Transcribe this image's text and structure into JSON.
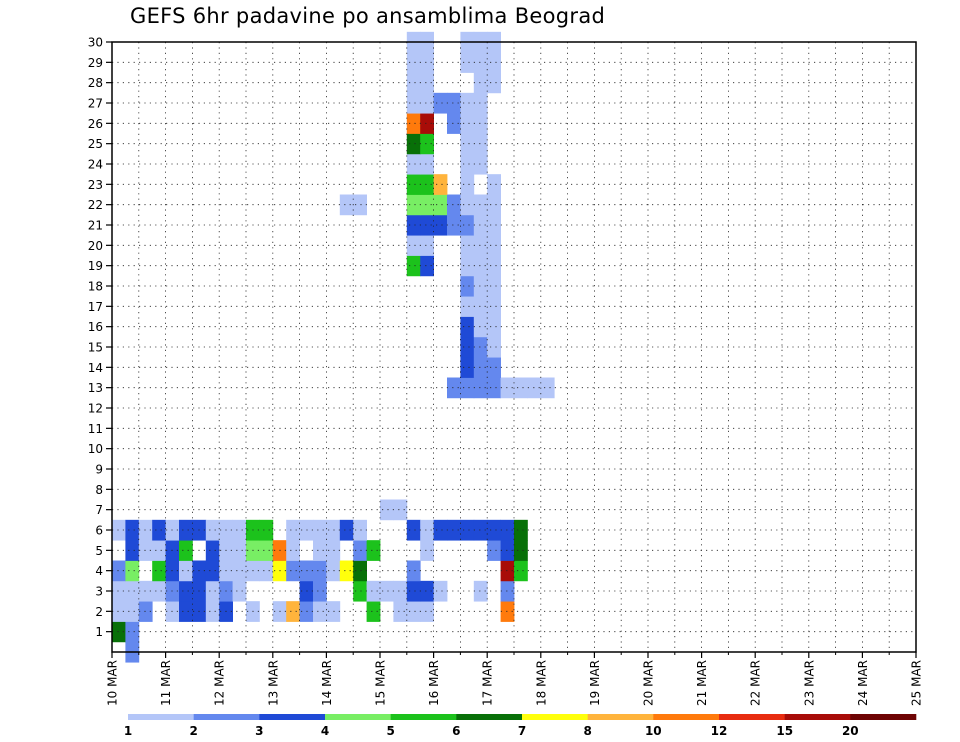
{
  "chart_data": {
    "type": "heatmap",
    "title": "GEFS 6hr padavine po ansamblima Beograd",
    "x_tick_labels": [
      "10 MAR",
      "11 MAR",
      "12 MAR",
      "13 MAR",
      "14 MAR",
      "15 MAR",
      "16 MAR",
      "17 MAR",
      "18 MAR",
      "19 MAR",
      "20 MAR",
      "21 MAR",
      "22 MAR",
      "23 MAR",
      "24 MAR",
      "25 MAR"
    ],
    "y_tick_labels": [
      "1",
      "2",
      "3",
      "4",
      "5",
      "6",
      "7",
      "8",
      "9",
      "10",
      "11",
      "12",
      "13",
      "14",
      "15",
      "16",
      "17",
      "18",
      "19",
      "20",
      "21",
      "22",
      "23",
      "24",
      "25",
      "26",
      "27",
      "28",
      "29",
      "30"
    ],
    "x_steps_6h": 60,
    "y_members": [
      0,
      30
    ],
    "grid": "dotted",
    "legend": {
      "position": "bottom",
      "labels": [
        "1",
        "2",
        "3",
        "4",
        "5",
        "6",
        "7",
        "8",
        "10",
        "12",
        "15",
        "20"
      ],
      "colors": [
        "#b4c6f8",
        "#6488ee",
        "#1f4ad6",
        "#78ee64",
        "#1cc21c",
        "#087008",
        "#ffff0c",
        "#ffb43c",
        "#ff7a0c",
        "#e82c10",
        "#a80c08",
        "#6e0404"
      ]
    },
    "cells": [
      [
        0,
        1,
        1
      ],
      [
        1,
        0,
        5
      ],
      [
        1,
        1,
        1
      ],
      [
        2,
        0,
        0
      ],
      [
        2,
        1,
        0
      ],
      [
        2,
        2,
        1
      ],
      [
        2,
        4,
        0
      ],
      [
        2,
        5,
        2
      ],
      [
        2,
        6,
        2
      ],
      [
        2,
        7,
        0
      ],
      [
        2,
        8,
        2
      ],
      [
        2,
        10,
        0
      ],
      [
        2,
        12,
        0
      ],
      [
        2,
        13,
        7
      ],
      [
        2,
        14,
        1
      ],
      [
        2,
        15,
        0
      ],
      [
        2,
        16,
        0
      ],
      [
        2,
        19,
        4
      ],
      [
        2,
        21,
        0
      ],
      [
        2,
        22,
        0
      ],
      [
        2,
        23,
        0
      ],
      [
        2,
        29,
        8
      ],
      [
        3,
        0,
        0
      ],
      [
        3,
        1,
        0
      ],
      [
        3,
        2,
        0
      ],
      [
        3,
        3,
        0
      ],
      [
        3,
        4,
        1
      ],
      [
        3,
        5,
        2
      ],
      [
        3,
        6,
        2
      ],
      [
        3,
        7,
        0
      ],
      [
        3,
        8,
        1
      ],
      [
        3,
        9,
        0
      ],
      [
        3,
        14,
        2
      ],
      [
        3,
        15,
        1
      ],
      [
        3,
        18,
        4
      ],
      [
        3,
        19,
        0
      ],
      [
        3,
        20,
        0
      ],
      [
        3,
        21,
        0
      ],
      [
        3,
        22,
        2
      ],
      [
        3,
        23,
        2
      ],
      [
        3,
        24,
        0
      ],
      [
        3,
        27,
        0
      ],
      [
        3,
        29,
        1
      ],
      [
        4,
        0,
        1
      ],
      [
        4,
        1,
        3
      ],
      [
        4,
        3,
        4
      ],
      [
        4,
        4,
        2
      ],
      [
        4,
        5,
        0
      ],
      [
        4,
        6,
        2
      ],
      [
        4,
        7,
        2
      ],
      [
        4,
        8,
        0
      ],
      [
        4,
        9,
        0
      ],
      [
        4,
        10,
        0
      ],
      [
        4,
        11,
        0
      ],
      [
        4,
        12,
        6
      ],
      [
        4,
        13,
        1
      ],
      [
        4,
        14,
        1
      ],
      [
        4,
        15,
        1
      ],
      [
        4,
        16,
        0
      ],
      [
        4,
        17,
        6
      ],
      [
        4,
        18,
        5
      ],
      [
        4,
        22,
        1
      ],
      [
        4,
        29,
        10
      ],
      [
        4,
        30,
        4
      ],
      [
        5,
        1,
        2
      ],
      [
        5,
        2,
        0
      ],
      [
        5,
        3,
        0
      ],
      [
        5,
        4,
        2
      ],
      [
        5,
        5,
        4
      ],
      [
        5,
        7,
        2
      ],
      [
        5,
        8,
        0
      ],
      [
        5,
        9,
        0
      ],
      [
        5,
        10,
        3
      ],
      [
        5,
        11,
        3
      ],
      [
        5,
        12,
        8
      ],
      [
        5,
        13,
        0
      ],
      [
        5,
        15,
        0
      ],
      [
        5,
        16,
        0
      ],
      [
        5,
        18,
        1
      ],
      [
        5,
        19,
        4
      ],
      [
        5,
        23,
        0
      ],
      [
        5,
        28,
        1
      ],
      [
        5,
        29,
        2
      ],
      [
        5,
        30,
        5
      ],
      [
        6,
        0,
        0
      ],
      [
        6,
        1,
        2
      ],
      [
        6,
        2,
        0
      ],
      [
        6,
        3,
        2
      ],
      [
        6,
        4,
        0
      ],
      [
        6,
        5,
        2
      ],
      [
        6,
        6,
        2
      ],
      [
        6,
        7,
        0
      ],
      [
        6,
        8,
        0
      ],
      [
        6,
        9,
        0
      ],
      [
        6,
        10,
        4
      ],
      [
        6,
        11,
        4
      ],
      [
        6,
        13,
        0
      ],
      [
        6,
        14,
        0
      ],
      [
        6,
        15,
        0
      ],
      [
        6,
        16,
        0
      ],
      [
        6,
        17,
        2
      ],
      [
        6,
        18,
        0
      ],
      [
        6,
        22,
        2
      ],
      [
        6,
        23,
        0
      ],
      [
        6,
        24,
        2
      ],
      [
        6,
        25,
        2
      ],
      [
        6,
        26,
        2
      ],
      [
        6,
        27,
        2
      ],
      [
        6,
        28,
        2
      ],
      [
        6,
        29,
        2
      ],
      [
        6,
        30,
        5
      ],
      [
        7,
        20,
        0
      ],
      [
        7,
        21,
        0
      ],
      [
        13,
        25,
        1
      ],
      [
        13,
        26,
        1
      ],
      [
        13,
        27,
        1
      ],
      [
        13,
        28,
        1
      ],
      [
        13,
        29,
        0
      ],
      [
        13,
        30,
        0
      ],
      [
        13,
        31,
        0
      ],
      [
        13,
        32,
        0
      ],
      [
        14,
        26,
        2
      ],
      [
        14,
        27,
        1
      ],
      [
        14,
        28,
        1
      ],
      [
        15,
        26,
        2
      ],
      [
        15,
        27,
        1
      ],
      [
        15,
        28,
        0
      ],
      [
        16,
        26,
        2
      ],
      [
        16,
        27,
        0
      ],
      [
        16,
        28,
        0
      ],
      [
        17,
        26,
        0
      ],
      [
        17,
        27,
        0
      ],
      [
        17,
        28,
        0
      ],
      [
        18,
        26,
        1
      ],
      [
        18,
        27,
        0
      ],
      [
        18,
        28,
        0
      ],
      [
        19,
        22,
        4
      ],
      [
        19,
        23,
        2
      ],
      [
        19,
        26,
        0
      ],
      [
        19,
        27,
        0
      ],
      [
        19,
        28,
        0
      ],
      [
        20,
        22,
        0
      ],
      [
        20,
        23,
        0
      ],
      [
        20,
        26,
        0
      ],
      [
        20,
        27,
        0
      ],
      [
        20,
        28,
        0
      ],
      [
        21,
        22,
        2
      ],
      [
        21,
        23,
        2
      ],
      [
        21,
        24,
        2
      ],
      [
        21,
        25,
        1
      ],
      [
        21,
        26,
        1
      ],
      [
        21,
        27,
        0
      ],
      [
        21,
        28,
        0
      ],
      [
        22,
        17,
        0
      ],
      [
        22,
        18,
        0
      ],
      [
        22,
        22,
        3
      ],
      [
        22,
        23,
        3
      ],
      [
        22,
        24,
        3
      ],
      [
        22,
        25,
        1
      ],
      [
        22,
        26,
        0
      ],
      [
        22,
        27,
        0
      ],
      [
        22,
        28,
        0
      ],
      [
        23,
        22,
        4
      ],
      [
        23,
        23,
        4
      ],
      [
        23,
        24,
        7
      ],
      [
        23,
        26,
        0
      ],
      [
        23,
        28,
        0
      ],
      [
        24,
        22,
        0
      ],
      [
        24,
        23,
        0
      ],
      [
        24,
        26,
        0
      ],
      [
        24,
        27,
        0
      ],
      [
        25,
        22,
        5
      ],
      [
        25,
        23,
        4
      ],
      [
        25,
        26,
        0
      ],
      [
        25,
        27,
        0
      ],
      [
        26,
        22,
        8
      ],
      [
        26,
        23,
        10
      ],
      [
        26,
        25,
        1
      ],
      [
        26,
        26,
        0
      ],
      [
        26,
        27,
        0
      ],
      [
        27,
        22,
        0
      ],
      [
        27,
        23,
        0
      ],
      [
        27,
        24,
        1
      ],
      [
        27,
        25,
        1
      ],
      [
        27,
        26,
        0
      ],
      [
        27,
        27,
        0
      ],
      [
        28,
        22,
        0
      ],
      [
        28,
        23,
        0
      ],
      [
        28,
        27,
        0
      ],
      [
        28,
        28,
        0
      ],
      [
        29,
        22,
        0
      ],
      [
        29,
        23,
        0
      ],
      [
        29,
        26,
        0
      ],
      [
        29,
        27,
        0
      ],
      [
        29,
        28,
        0
      ],
      [
        30,
        22,
        0
      ],
      [
        30,
        23,
        0
      ],
      [
        30,
        26,
        0
      ],
      [
        30,
        27,
        0
      ],
      [
        30,
        28,
        0
      ]
    ]
  }
}
